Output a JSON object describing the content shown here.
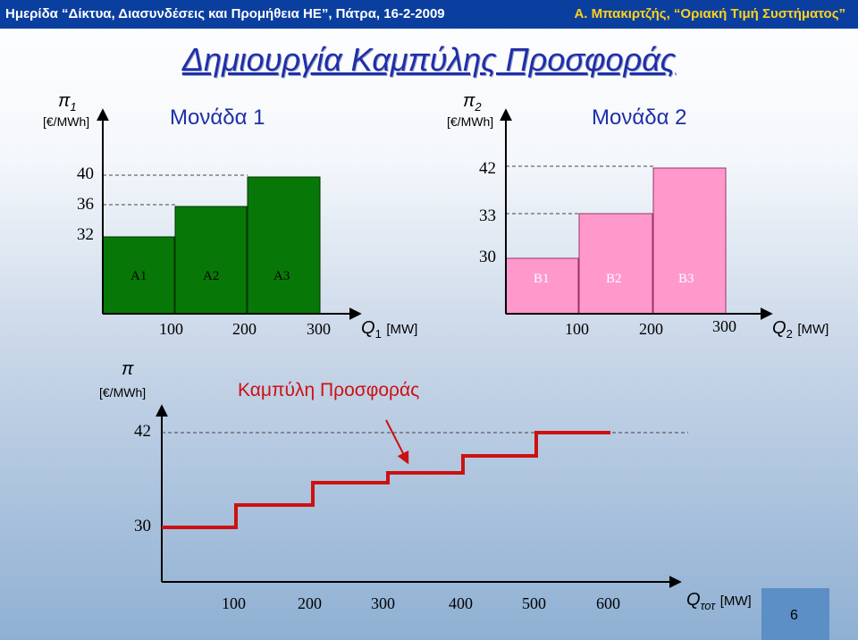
{
  "header": {
    "left": "Ημερίδα “Δίκτυα, Διασυνδέσεις και Προμήθεια ΗΕ”, Πάτρα, 16-2-2009",
    "right": "Α. Μπακιρτζής, “Οριακή Τιμή Συστήματος”"
  },
  "title": "Δημιουργία Καμπύλης Προσφοράς",
  "unit1": {
    "name": "Μονάδα 1",
    "y_symbol": "π",
    "y_sub": "1",
    "y_unit": "[€/MWh]",
    "x_symbol": "Q",
    "x_sub": "1",
    "x_unit": "[MW]",
    "y_ticks": [
      "40",
      "36",
      "32"
    ],
    "x_ticks": [
      "100",
      "200",
      "300"
    ],
    "blocks": [
      {
        "label": "A1",
        "price": 32
      },
      {
        "label": "A2",
        "price": 36
      },
      {
        "label": "A3",
        "price": 40
      }
    ],
    "bar_color": "#077807"
  },
  "unit2": {
    "name": "Μονάδα 2",
    "y_symbol": "π",
    "y_sub": "2",
    "y_unit": "[€/MWh]",
    "x_symbol": "Q",
    "x_sub": "2",
    "x_unit": "[MW]",
    "y_ticks": [
      "42",
      "33",
      "30"
    ],
    "x_ticks": [
      "100",
      "200",
      "300"
    ],
    "blocks": [
      {
        "label": "B1",
        "price": 30
      },
      {
        "label": "B2",
        "price": 33
      },
      {
        "label": "B3",
        "price": 42
      }
    ],
    "bar_color": "#ff99cc"
  },
  "supply": {
    "y_symbol": "π",
    "y_unit": "[€/MWh]",
    "x_symbol": "Q",
    "x_sub": "τοτ",
    "x_unit": "[MW]",
    "annotation": "Καμπύλη Προσφοράς",
    "y_ticks": [
      "42",
      "30"
    ],
    "x_ticks": [
      "100",
      "200",
      "300",
      "400",
      "500",
      "600"
    ],
    "steps": [
      30,
      32,
      33,
      36,
      40,
      42
    ],
    "line_color": "#cc1111"
  },
  "page_number": "6"
}
